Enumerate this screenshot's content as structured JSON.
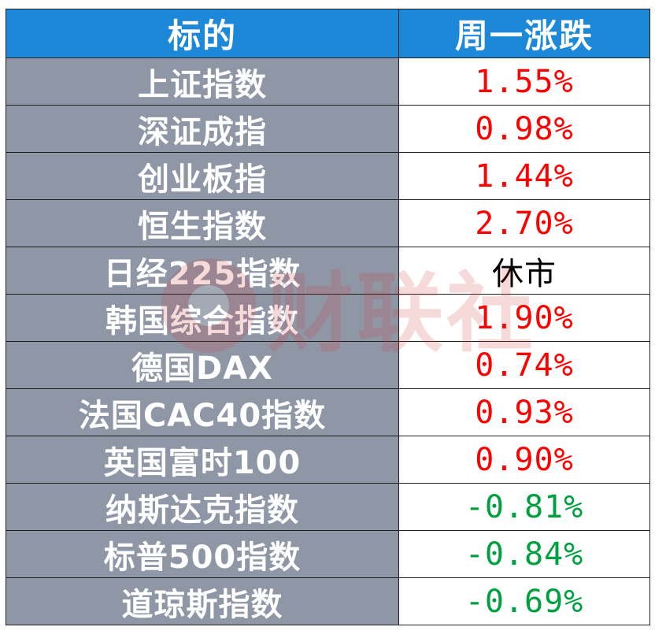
{
  "header": {
    "col_name": "标的",
    "col_change": "周一涨跌"
  },
  "rows": [
    {
      "name": "上证指数",
      "change": "1.55%",
      "direction": "up"
    },
    {
      "name": "深证成指",
      "change": "0.98%",
      "direction": "up"
    },
    {
      "name": "创业板指",
      "change": "1.44%",
      "direction": "up"
    },
    {
      "name": "恒生指数",
      "change": "2.70%",
      "direction": "up"
    },
    {
      "name": "日经225指数",
      "change": "休市",
      "direction": "flat"
    },
    {
      "name": "韩国综合指数",
      "change": "1.90%",
      "direction": "up"
    },
    {
      "name": "德国DAX",
      "change": "0.74%",
      "direction": "up"
    },
    {
      "name": "法国CAC40指数",
      "change": "0.93%",
      "direction": "up"
    },
    {
      "name": "英国富时100",
      "change": "0.90%",
      "direction": "up"
    },
    {
      "name": "纳斯达克指数",
      "change": "-0.81%",
      "direction": "down"
    },
    {
      "name": "标普500指数",
      "change": "-0.84%",
      "direction": "down"
    },
    {
      "name": "道琼斯指数",
      "change": "-0.69%",
      "direction": "down"
    }
  ],
  "watermark": {
    "text": "财联社"
  },
  "colors": {
    "header_bg": "#1e88d8",
    "name_bg": "#8f97a6",
    "up": "#ff0000",
    "down": "#00a040",
    "flat": "#000000"
  }
}
